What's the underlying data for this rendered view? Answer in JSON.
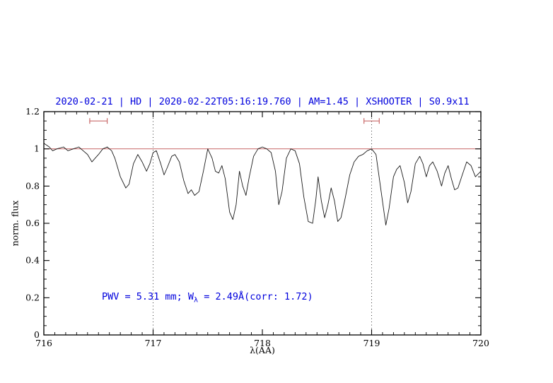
{
  "colors": {
    "title_text": "#0000dd",
    "annotation_text": "#0000dd",
    "spectrum_line": "#1a1a1a",
    "reference_red": "#c96a6a",
    "frame": "#000000",
    "dotted_guide": "#222222"
  },
  "chart_data": {
    "type": "line",
    "title": "2020-02-21 | HD | 2020-02-22T05:16:19.760 | AM=1.45 | XSHOOTER | S0.9x11",
    "xlabel": "λ(AA)",
    "ylabel": "norm. flux",
    "xlim": [
      716,
      720
    ],
    "ylim": [
      0,
      1.2
    ],
    "x_ticks": [
      716,
      717,
      718,
      719,
      720
    ],
    "x_tick_labels": [
      "716",
      "717",
      "718",
      "719",
      "720"
    ],
    "y_ticks": [
      0,
      0.2,
      0.4,
      0.6,
      0.8,
      1,
      1.2
    ],
    "y_tick_labels": [
      "0",
      "0.2",
      "0.4",
      "0.6",
      "0.8",
      "1",
      "1.2"
    ],
    "x_minor_step": 0.1,
    "y_minor_step": 0.05,
    "grid": false,
    "dotted_vlines": [
      717,
      719
    ],
    "reference_hline": 1.0,
    "range_markers": [
      {
        "x_start": 716.42,
        "x_end": 716.58,
        "y": 1.15
      },
      {
        "x_start": 718.93,
        "x_end": 719.07,
        "y": 1.15
      }
    ],
    "annotation": {
      "part1": "PWV = 5.31 mm; W",
      "sub": "λ",
      "part2": " = 2.49Å(corr: 1.72)",
      "x": 716.55,
      "y": 0.2
    },
    "series": [
      {
        "name": "spectrum",
        "x": [
          716.0,
          716.05,
          716.08,
          716.12,
          716.18,
          716.22,
          716.27,
          716.32,
          716.36,
          716.4,
          716.44,
          716.47,
          716.5,
          716.54,
          716.58,
          716.62,
          716.65,
          716.7,
          716.75,
          716.78,
          716.82,
          716.86,
          716.9,
          716.94,
          716.97,
          717.0,
          717.03,
          717.07,
          717.1,
          717.13,
          717.17,
          717.2,
          717.24,
          717.28,
          717.32,
          717.35,
          717.38,
          717.42,
          717.46,
          717.5,
          717.54,
          717.57,
          717.6,
          717.63,
          717.66,
          717.7,
          717.73,
          717.76,
          717.79,
          717.82,
          717.85,
          717.88,
          717.92,
          717.96,
          718.0,
          718.04,
          718.08,
          718.12,
          718.15,
          718.18,
          718.22,
          718.26,
          718.3,
          718.34,
          718.38,
          718.42,
          718.46,
          718.49,
          718.51,
          718.54,
          718.57,
          718.6,
          718.63,
          718.66,
          718.69,
          718.72,
          718.76,
          718.8,
          718.84,
          718.88,
          718.92,
          718.96,
          719.0,
          719.04,
          719.08,
          719.13,
          719.16,
          719.2,
          719.23,
          719.26,
          719.3,
          719.33,
          719.36,
          719.4,
          719.44,
          719.47,
          719.5,
          719.53,
          719.56,
          719.6,
          719.64,
          719.67,
          719.7,
          719.73,
          719.76,
          719.79,
          719.83,
          719.87,
          719.91,
          719.95,
          720.0
        ],
        "y": [
          1.03,
          1.01,
          0.99,
          1.0,
          1.01,
          0.99,
          1.0,
          1.01,
          0.99,
          0.97,
          0.93,
          0.95,
          0.97,
          1.0,
          1.01,
          0.99,
          0.95,
          0.85,
          0.79,
          0.81,
          0.92,
          0.97,
          0.93,
          0.88,
          0.92,
          0.98,
          0.99,
          0.92,
          0.86,
          0.9,
          0.96,
          0.97,
          0.93,
          0.83,
          0.76,
          0.78,
          0.75,
          0.77,
          0.88,
          1.0,
          0.95,
          0.88,
          0.87,
          0.91,
          0.84,
          0.66,
          0.62,
          0.7,
          0.88,
          0.8,
          0.75,
          0.85,
          0.96,
          1.0,
          1.01,
          1.0,
          0.98,
          0.88,
          0.7,
          0.77,
          0.95,
          1.0,
          0.99,
          0.92,
          0.74,
          0.61,
          0.6,
          0.73,
          0.85,
          0.72,
          0.63,
          0.7,
          0.79,
          0.72,
          0.61,
          0.63,
          0.74,
          0.86,
          0.93,
          0.96,
          0.97,
          0.99,
          1.0,
          0.97,
          0.8,
          0.59,
          0.68,
          0.85,
          0.89,
          0.91,
          0.82,
          0.71,
          0.77,
          0.92,
          0.96,
          0.92,
          0.85,
          0.91,
          0.93,
          0.88,
          0.8,
          0.87,
          0.91,
          0.84,
          0.78,
          0.79,
          0.86,
          0.93,
          0.91,
          0.85,
          0.88
        ]
      }
    ],
    "legend": null
  }
}
